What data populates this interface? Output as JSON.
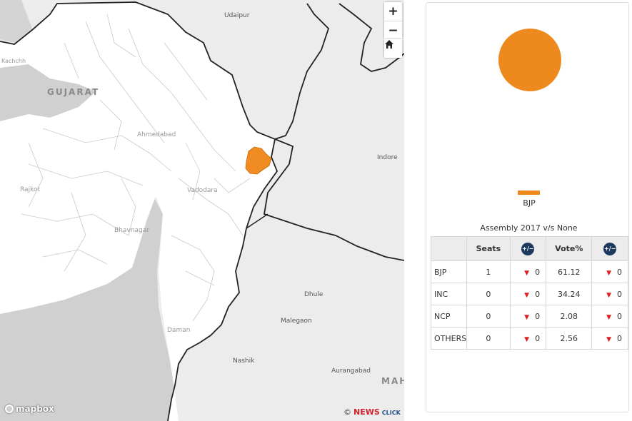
{
  "map": {
    "controls": {
      "zoom_in": "+",
      "zoom_out": "−"
    },
    "labels": {
      "udaipur": "Udaipur",
      "kachchh": "Kachchh",
      "gujarat": "GUJARAT",
      "ahmedabad": "Ahmedabad",
      "indore": "Indore",
      "rajkot": "Rajkot",
      "vadodara": "Vadodara",
      "bhavnagar": "Bhavnagar",
      "dhule": "Dhule",
      "malegaon": "Malegaon",
      "daman": "Daman",
      "nashik": "Nashik",
      "aurangabad": "Aurangabad",
      "maha": "MAH"
    },
    "highlight_color": "#f08c21",
    "attribution": {
      "mapbox": "mapbox",
      "copyright": "©",
      "brand_news": "NEWS",
      "brand_click": "CLICK"
    }
  },
  "panel": {
    "pie": {
      "label": "BJP",
      "value": 1,
      "color": "#ee8a1d"
    },
    "legend": [
      {
        "label": "BJP",
        "color": "#ee8a1d"
      }
    ],
    "table_title": "Assembly 2017 v/s None",
    "headers": {
      "seats": "Seats",
      "change_icon": "+/−",
      "vote": "Vote%"
    },
    "rows": [
      {
        "party": "BJP",
        "seats": "1",
        "seats_change": "0",
        "vote": "61.12",
        "vote_change": "0"
      },
      {
        "party": "INC",
        "seats": "0",
        "seats_change": "0",
        "vote": "34.24",
        "vote_change": "0"
      },
      {
        "party": "NCP",
        "seats": "0",
        "seats_change": "0",
        "vote": "2.08",
        "vote_change": "0"
      },
      {
        "party": "OTHERS",
        "seats": "0",
        "seats_change": "0",
        "vote": "2.56",
        "vote_change": "0"
      }
    ],
    "change_marker": "▼"
  }
}
